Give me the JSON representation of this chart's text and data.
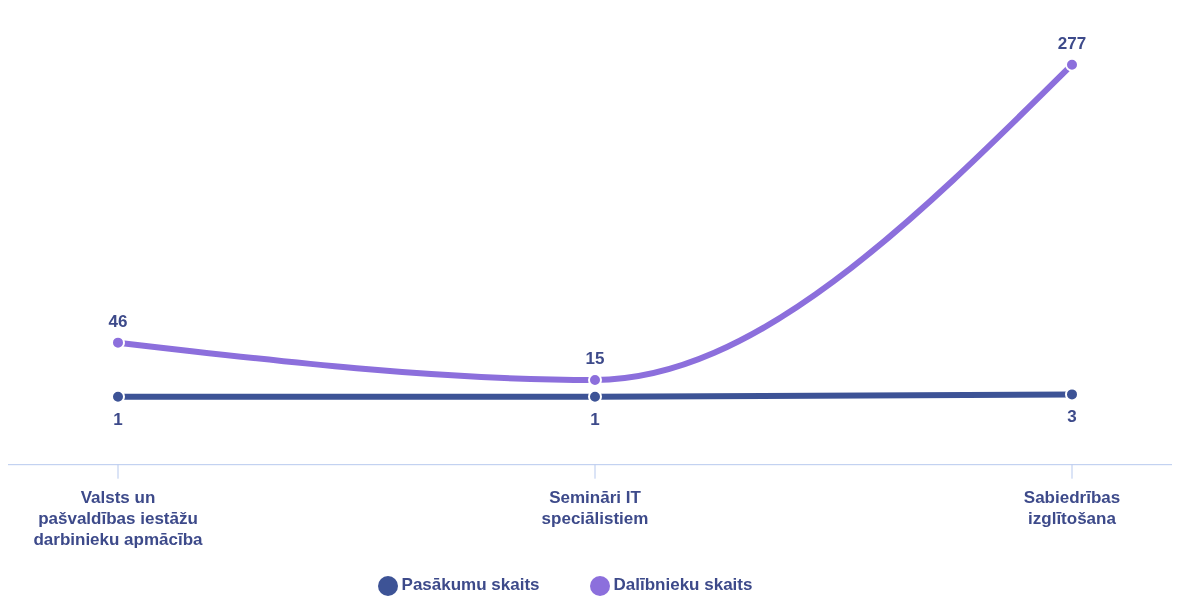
{
  "chart_data": {
    "type": "line",
    "categories": [
      "Valsts un pašvaldības iestāžu darbinieku apmācība",
      "Semināri IT speciālistiem",
      "Sabiedrības izglītošana"
    ],
    "series": [
      {
        "name": "Pasākumu skaits",
        "color": "#3d5396",
        "values": [
          1,
          1,
          3
        ]
      },
      {
        "name": "Dalībnieku skaits",
        "color": "#8c6fdc",
        "values": [
          46,
          15,
          277
        ]
      }
    ],
    "data_labels": true,
    "legend": "bottom",
    "marker": "circle",
    "line_style": "solid",
    "grid": false
  }
}
